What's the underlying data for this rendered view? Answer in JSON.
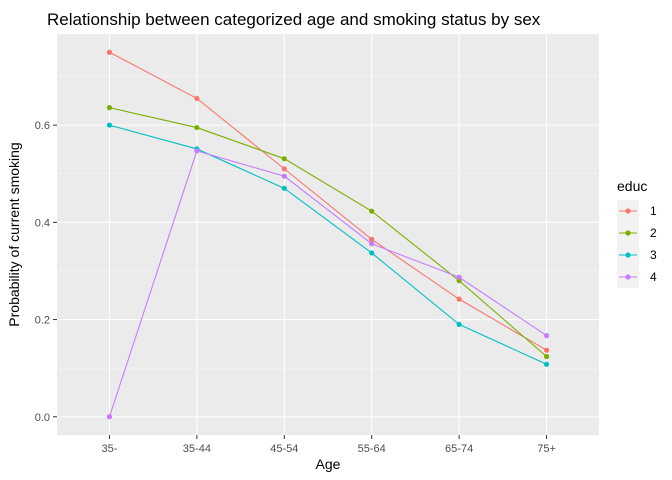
{
  "chart_data": {
    "type": "line",
    "title": "Relationship between categorized age and smoking status by sex",
    "xlabel": "Age",
    "ylabel": "Probability of current smoking",
    "categories": [
      "35-",
      "35-44",
      "45-54",
      "55-64",
      "65-74",
      "75+"
    ],
    "ylim": [
      -0.0375,
      0.7875
    ],
    "yticks": [
      0.0,
      0.2,
      0.4,
      0.6
    ],
    "ytick_labels": [
      "0.0",
      "0.2",
      "0.4",
      "0.6"
    ],
    "grid": true,
    "legend": {
      "title": "educ",
      "placement": "right"
    },
    "series": [
      {
        "name": "1",
        "color": "#F8766D",
        "values": [
          0.75,
          0.655,
          0.51,
          0.365,
          0.242,
          0.137
        ]
      },
      {
        "name": "2",
        "color": "#7CAE00",
        "values": [
          0.636,
          0.595,
          0.531,
          0.423,
          0.28,
          0.124
        ]
      },
      {
        "name": "3",
        "color": "#00BFC4",
        "values": [
          0.6,
          0.551,
          0.47,
          0.337,
          0.19,
          0.108
        ]
      },
      {
        "name": "4",
        "color": "#C77CFF",
        "values": [
          0.0,
          0.547,
          0.495,
          0.356,
          0.287,
          0.167
        ]
      }
    ]
  },
  "colors": {
    "panel_background": "#EBEBEB",
    "grid_major": "#FFFFFF",
    "grid_minor": "#F5F5F5",
    "tick_text": "#4D4D4D"
  }
}
